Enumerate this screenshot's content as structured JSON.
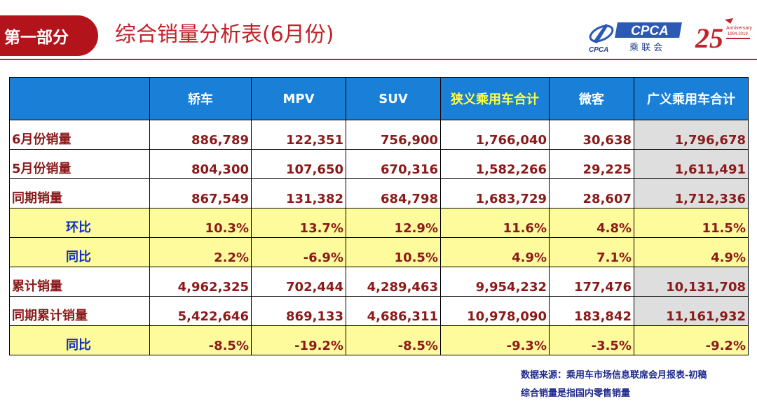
{
  "header": {
    "section_label": "第一部分",
    "title": "综合销量分析表(6月份)",
    "logo_cpca_text": "CPCA",
    "logo_cpca_sub": "乘 联 会",
    "logo_anniv_number": "25",
    "logo_anniv_text": "Anniversary",
    "logo_anniv_years": "1994-2019"
  },
  "colors": {
    "accent_red": "#c0242a",
    "tab_red": "#b3141c",
    "header_blue": "#1a7fd6",
    "highlight_yellow": "#ffff3a",
    "ratio_row_bg": "#fdfb9b",
    "total_col_bg": "#dedede",
    "value_text": "#8b1a1a",
    "ratio_label_text": "#1030c0"
  },
  "table": {
    "columns": [
      "",
      "轿车",
      "MPV",
      "SUV",
      "狭义乘用车合计",
      "微客",
      "广义乘用车合计"
    ],
    "rows": [
      {
        "label": "6月份销量",
        "values": [
          "886,789",
          "122,351",
          "756,900",
          "1,766,040",
          "30,638",
          "1,796,678"
        ]
      },
      {
        "label": "5月份销量",
        "values": [
          "804,300",
          "107,650",
          "670,316",
          "1,582,266",
          "29,225",
          "1,611,491"
        ]
      },
      {
        "label": "同期销量",
        "values": [
          "867,549",
          "131,382",
          "684,798",
          "1,683,729",
          "28,607",
          "1,712,336"
        ]
      },
      {
        "label": "环比",
        "values": [
          "10.3%",
          "13.7%",
          "12.9%",
          "11.6%",
          "4.8%",
          "11.5%"
        ]
      },
      {
        "label": "同比",
        "values": [
          "2.2%",
          "-6.9%",
          "10.5%",
          "4.9%",
          "7.1%",
          "4.9%"
        ]
      },
      {
        "label": "累计销量",
        "values": [
          "4,962,325",
          "702,444",
          "4,289,463",
          "9,954,232",
          "177,476",
          "10,131,708"
        ]
      },
      {
        "label": "同期累计销量",
        "values": [
          "5,422,646",
          "869,133",
          "4,686,311",
          "10,978,090",
          "183,842",
          "11,161,932"
        ]
      },
      {
        "label": "同比",
        "values": [
          "-8.5%",
          "-19.2%",
          "-8.5%",
          "-9.3%",
          "-3.5%",
          "-9.2%"
        ]
      }
    ]
  },
  "footnotes": {
    "source": "数据来源：乘用车市场信息联席会月报表-初稿",
    "definition": "综合销量是指国内零售销量"
  }
}
